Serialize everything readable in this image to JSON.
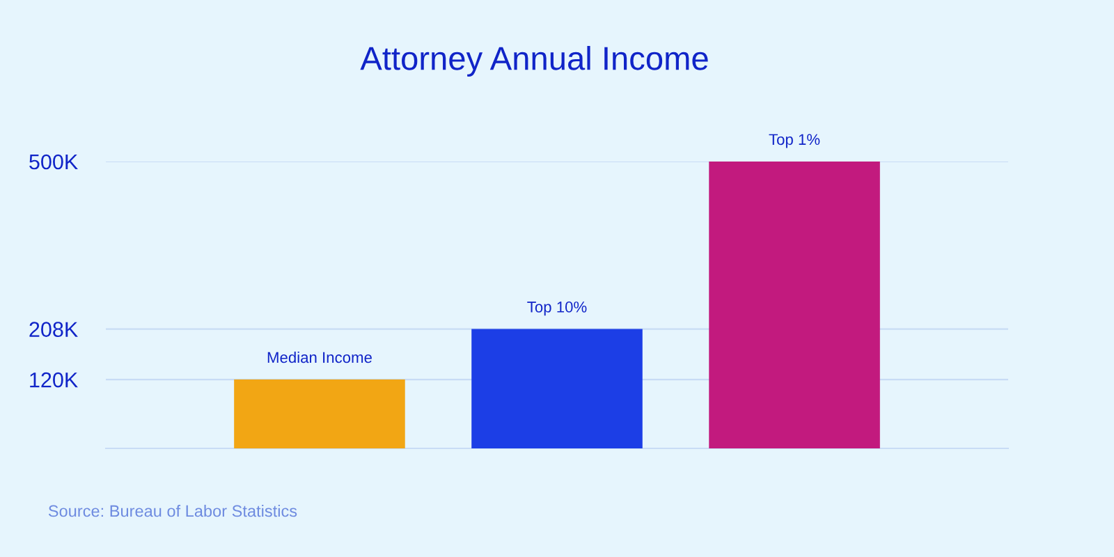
{
  "chart_data": {
    "type": "bar",
    "title": "Attorney Annual Income",
    "categories": [
      "Median Income",
      "Top 10%",
      "Top 1%"
    ],
    "values": [
      120000,
      208000,
      500000
    ],
    "colors": [
      "#f2a614",
      "#1c3ee6",
      "#c21a7e"
    ],
    "ylim": [
      0,
      500000
    ],
    "yticks": [
      {
        "value": 120000,
        "label": "120K"
      },
      {
        "value": 208000,
        "label": "208K"
      },
      {
        "value": 500000,
        "label": "500K"
      }
    ],
    "grid": "y",
    "annotations": [
      "Source: Bureau of Labor Statistics"
    ]
  }
}
